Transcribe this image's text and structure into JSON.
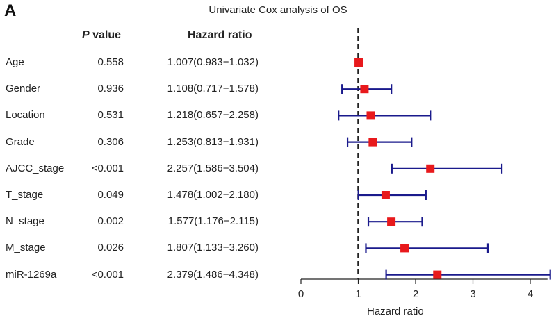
{
  "panel_label": "A",
  "chart_data": {
    "type": "forest",
    "title": "Univariate Cox analysis of OS",
    "xlabel": "Hazard ratio",
    "xlim": [
      0,
      4.3
    ],
    "xticks": [
      0,
      1,
      2,
      3,
      4
    ],
    "reference_line": 1,
    "colors": {
      "ci": "#1a1a8c",
      "point": "#e8191c",
      "reference": "#222222"
    },
    "columns": {
      "p_header": "value",
      "p_header_italic": "P",
      "hr_header": "Hazard ratio"
    },
    "rows": [
      {
        "variable": "Age",
        "p": "0.558",
        "hr_text": "1.007(0.983−1.032)",
        "hr": 1.007,
        "lower": 0.983,
        "upper": 1.032
      },
      {
        "variable": "Gender",
        "p": "0.936",
        "hr_text": "1.108(0.717−1.578)",
        "hr": 1.108,
        "lower": 0.717,
        "upper": 1.578
      },
      {
        "variable": "Location",
        "p": "0.531",
        "hr_text": "1.218(0.657−2.258)",
        "hr": 1.218,
        "lower": 0.657,
        "upper": 2.258
      },
      {
        "variable": "Grade",
        "p": "0.306",
        "hr_text": "1.253(0.813−1.931)",
        "hr": 1.253,
        "lower": 0.813,
        "upper": 1.931
      },
      {
        "variable": "AJCC_stage",
        "p": "<0.001",
        "hr_text": "2.257(1.586−3.504)",
        "hr": 2.257,
        "lower": 1.586,
        "upper": 3.504
      },
      {
        "variable": "T_stage",
        "p": "0.049",
        "hr_text": "1.478(1.002−2.180)",
        "hr": 1.478,
        "lower": 1.002,
        "upper": 2.18
      },
      {
        "variable": "N_stage",
        "p": "0.002",
        "hr_text": "1.577(1.176−2.115)",
        "hr": 1.577,
        "lower": 1.176,
        "upper": 2.115
      },
      {
        "variable": "M_stage",
        "p": "0.026",
        "hr_text": "1.807(1.133−3.260)",
        "hr": 1.807,
        "lower": 1.133,
        "upper": 3.26
      },
      {
        "variable": "miR-1269a",
        "p": "<0.001",
        "hr_text": "2.379(1.486−4.348)",
        "hr": 2.379,
        "lower": 1.486,
        "upper": 4.348
      }
    ]
  }
}
